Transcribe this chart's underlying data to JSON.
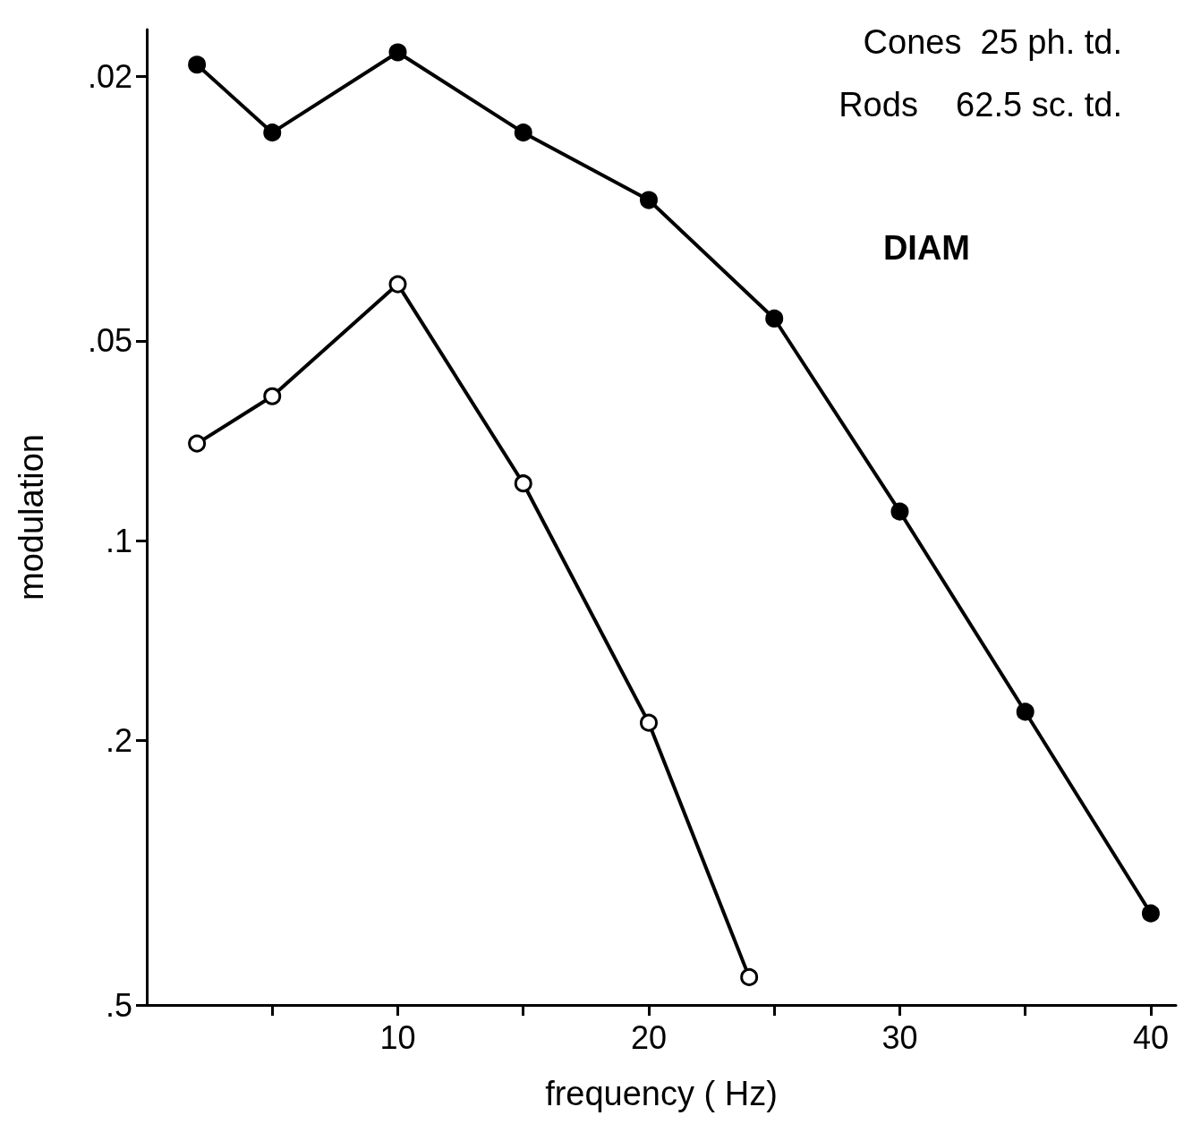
{
  "chart_data": {
    "type": "line",
    "xlabel": "frequency ( Hz)",
    "ylabel": "modulation",
    "annotations": [
      "Cones  25 ph. td.",
      "Rods    62.5 sc. td.",
      "DIAM"
    ],
    "xlim": [
      0,
      41
    ],
    "xticks": [
      {
        "value": 5,
        "label": null
      },
      10,
      {
        "value": 15,
        "label": null
      },
      20,
      {
        "value": 25,
        "label": null
      },
      30,
      {
        "value": 35,
        "label": null
      },
      40
    ],
    "ylim": [
      0.5,
      0.017
    ],
    "yticks": [
      {
        "value": 0.02,
        "label": ".02"
      },
      {
        "value": 0.05,
        "label": ".05"
      },
      {
        "value": 0.1,
        "label": ".1"
      },
      {
        "value": 0.2,
        "label": ".2"
      },
      {
        "value": 0.5,
        "label": ".5"
      }
    ],
    "log": "y",
    "grid": false,
    "marker": "circle",
    "line_style": "solid",
    "series": [
      {
        "color": "#000000",
        "x": [
          2,
          5,
          10,
          15,
          20,
          25,
          30,
          35,
          40
        ],
        "values": [
          0.0192,
          0.0243,
          0.0184,
          0.0243,
          0.0307,
          0.0463,
          0.0904,
          0.181,
          0.364
        ]
      },
      {
        "color": "#000000",
        "x": [
          2,
          5,
          10,
          15,
          20,
          24
        ],
        "values": [
          0.0714,
          0.0606,
          0.0411,
          0.082,
          0.188,
          0.454
        ]
      }
    ]
  }
}
